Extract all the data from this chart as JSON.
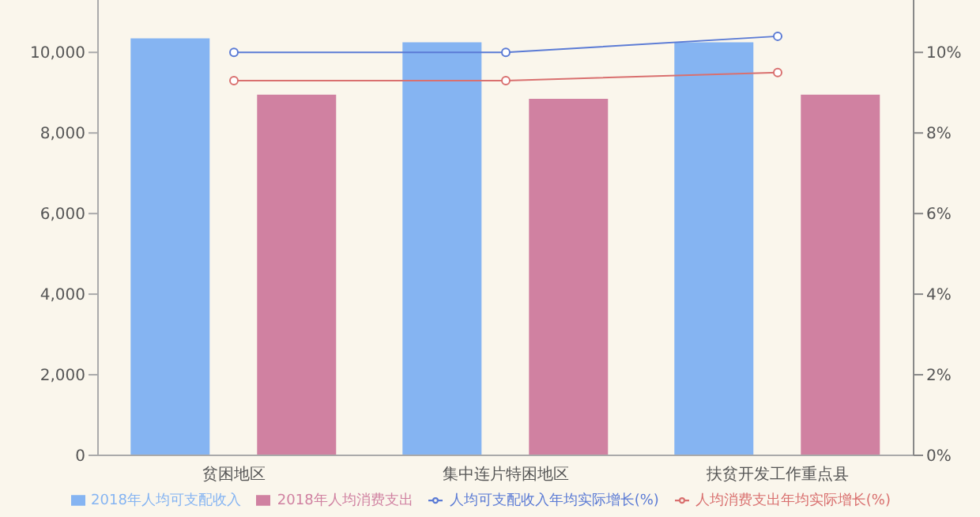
{
  "chart_data": {
    "type": "bar",
    "categories": [
      "贫困地区",
      "集中连片特困地区",
      "扶贫开发工作重点县"
    ],
    "series": [
      {
        "name": "2018年人均可支配收入",
        "color": "#85b4f2",
        "values": [
          10350,
          10250,
          10250
        ]
      },
      {
        "name": "2018年人均消费支出",
        "color": "#d081a1",
        "values": [
          8950,
          8850,
          8950
        ]
      },
      {
        "name": "人均可支配收入年均实际增长(%)",
        "type": "line",
        "axis": "y2",
        "color": "#5b7bd5",
        "values": [
          10.0,
          10.0,
          10.4
        ]
      },
      {
        "name": "人均消费支出年均实际增长(%)",
        "type": "line",
        "axis": "y2",
        "color": "#d9706f",
        "values": [
          9.3,
          9.3,
          9.5
        ]
      }
    ],
    "ylim": [
      0,
      11300
    ],
    "yticks": [
      {
        "value": 0,
        "label": "0"
      },
      {
        "value": 2000,
        "label": "2,000"
      },
      {
        "value": 4000,
        "label": "4,000"
      },
      {
        "value": 6000,
        "label": "6,000"
      },
      {
        "value": 8000,
        "label": "8,000"
      },
      {
        "value": 10000,
        "label": "10,000"
      }
    ],
    "y2lim": [
      0,
      11.3
    ],
    "y2ticks": [
      {
        "value": 0,
        "label": "0%"
      },
      {
        "value": 2,
        "label": "2%"
      },
      {
        "value": 4,
        "label": "4%"
      },
      {
        "value": 6,
        "label": "6%"
      },
      {
        "value": 8,
        "label": "8%"
      },
      {
        "value": 10,
        "label": "10%"
      }
    ],
    "marker": "circle",
    "grid": false,
    "legend": "bottom"
  }
}
